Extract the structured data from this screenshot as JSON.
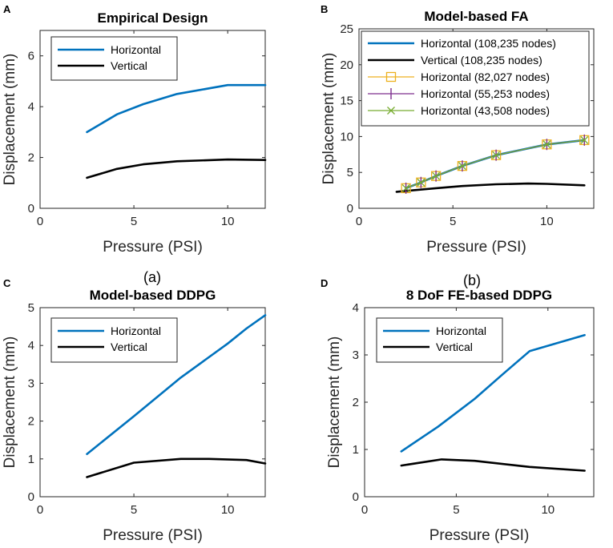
{
  "captions": [
    "(a)",
    "(b)"
  ],
  "chart_data": [
    {
      "id": "a",
      "panel_letter": "A",
      "type": "line",
      "title": "Empirical Design",
      "xlabel": "Pressure (PSI)",
      "ylabel": "Displacement (mm)",
      "xlim": [
        0,
        12
      ],
      "ylim": [
        0,
        7
      ],
      "xticks": [
        0,
        5,
        10
      ],
      "yticks": [
        0,
        2,
        4,
        6
      ],
      "grid": false,
      "legend_position": "top-left",
      "series": [
        {
          "name": "Horizontal",
          "color": "#0072BD",
          "marker": "none",
          "x": [
            2.5,
            4.1,
            5.5,
            7.3,
            10.0,
            12.0
          ],
          "y": [
            3.0,
            3.7,
            4.1,
            4.5,
            4.85,
            4.85
          ]
        },
        {
          "name": "Vertical",
          "color": "#000000",
          "marker": "none",
          "x": [
            2.5,
            4.1,
            5.5,
            7.3,
            10.0,
            12.0
          ],
          "y": [
            1.2,
            1.55,
            1.73,
            1.85,
            1.92,
            1.9
          ]
        }
      ]
    },
    {
      "id": "b",
      "panel_letter": "B",
      "type": "line",
      "title": "Model-based FA",
      "xlabel": "Pressure (PSI)",
      "ylabel": "Displacement (mm)",
      "xlim": [
        0,
        12.5
      ],
      "ylim": [
        0,
        25
      ],
      "xticks": [
        0,
        5,
        10
      ],
      "yticks": [
        0,
        5,
        10,
        15,
        20,
        25
      ],
      "grid": false,
      "legend_position": "top-right",
      "series": [
        {
          "name": "Horizontal (108,235 nodes)",
          "color": "#0072BD",
          "marker": "none",
          "x": [
            2.5,
            3.3,
            4.1,
            5.5,
            7.3,
            10.0,
            12.0
          ],
          "y": [
            2.8,
            3.6,
            4.5,
            5.9,
            7.4,
            8.9,
            9.5
          ]
        },
        {
          "name": "Vertical (108,235 nodes)",
          "color": "#000000",
          "marker": "none",
          "x": [
            2.0,
            4.1,
            5.5,
            7.3,
            9.0,
            10.0,
            12.0
          ],
          "y": [
            2.3,
            2.8,
            3.1,
            3.35,
            3.45,
            3.4,
            3.2
          ]
        },
        {
          "name": "Horizontal (82,027 nodes)",
          "color": "#EDB120",
          "marker": "square",
          "x": [
            2.5,
            3.3,
            4.1,
            5.5,
            7.3,
            10.0,
            12.0
          ],
          "y": [
            2.8,
            3.6,
            4.5,
            5.9,
            7.4,
            8.9,
            9.5
          ]
        },
        {
          "name": "Horizontal (55,253 nodes)",
          "color": "#7E2F8E",
          "marker": "vline",
          "x": [
            2.5,
            3.3,
            4.1,
            5.5,
            7.3,
            10.0,
            12.0
          ],
          "y": [
            2.8,
            3.6,
            4.5,
            5.9,
            7.4,
            8.9,
            9.5
          ]
        },
        {
          "name": "Horizontal (43,508 nodes)",
          "color": "#77AC30",
          "marker": "x",
          "x": [
            2.5,
            3.3,
            4.1,
            5.5,
            7.3,
            10.0,
            12.0
          ],
          "y": [
            2.8,
            3.6,
            4.5,
            5.9,
            7.4,
            8.9,
            9.5
          ]
        }
      ]
    },
    {
      "id": "c",
      "panel_letter": "C",
      "type": "line",
      "title": "Model-based DDPG",
      "xlabel": "Pressure (PSI)",
      "ylabel": "Displacement (mm)",
      "xlim": [
        0,
        12
      ],
      "ylim": [
        0,
        5
      ],
      "xticks": [
        0,
        5,
        10
      ],
      "yticks": [
        0,
        1,
        2,
        3,
        4,
        5
      ],
      "grid": false,
      "legend_position": "top-left",
      "series": [
        {
          "name": "Horizontal",
          "color": "#0072BD",
          "marker": "none",
          "x": [
            2.5,
            5.0,
            7.5,
            10.0,
            11.0,
            12.0
          ],
          "y": [
            1.13,
            2.13,
            3.15,
            4.05,
            4.45,
            4.8
          ]
        },
        {
          "name": "Vertical",
          "color": "#000000",
          "marker": "none",
          "x": [
            2.5,
            5.0,
            7.5,
            9.0,
            11.0,
            12.0
          ],
          "y": [
            0.52,
            0.9,
            1.0,
            1.0,
            0.97,
            0.88
          ]
        }
      ]
    },
    {
      "id": "d",
      "panel_letter": "D",
      "type": "line",
      "title": "8 DoF FE-based DDPG",
      "xlabel": "Pressure (PSI)",
      "ylabel": "Displacement (mm)",
      "xlim": [
        0,
        12.5
      ],
      "ylim": [
        0,
        4
      ],
      "xticks": [
        0,
        5,
        10
      ],
      "yticks": [
        0,
        1,
        2,
        3,
        4
      ],
      "grid": false,
      "legend_position": "top-left",
      "series": [
        {
          "name": "Horizontal",
          "color": "#0072BD",
          "marker": "none",
          "x": [
            2.0,
            4.0,
            6.0,
            7.5,
            9.0,
            10.5,
            12.0
          ],
          "y": [
            0.96,
            1.48,
            2.07,
            2.58,
            3.08,
            3.25,
            3.42
          ]
        },
        {
          "name": "Vertical",
          "color": "#000000",
          "marker": "none",
          "x": [
            2.0,
            4.2,
            6.0,
            9.0,
            12.0
          ],
          "y": [
            0.66,
            0.79,
            0.76,
            0.63,
            0.55
          ]
        }
      ]
    }
  ]
}
